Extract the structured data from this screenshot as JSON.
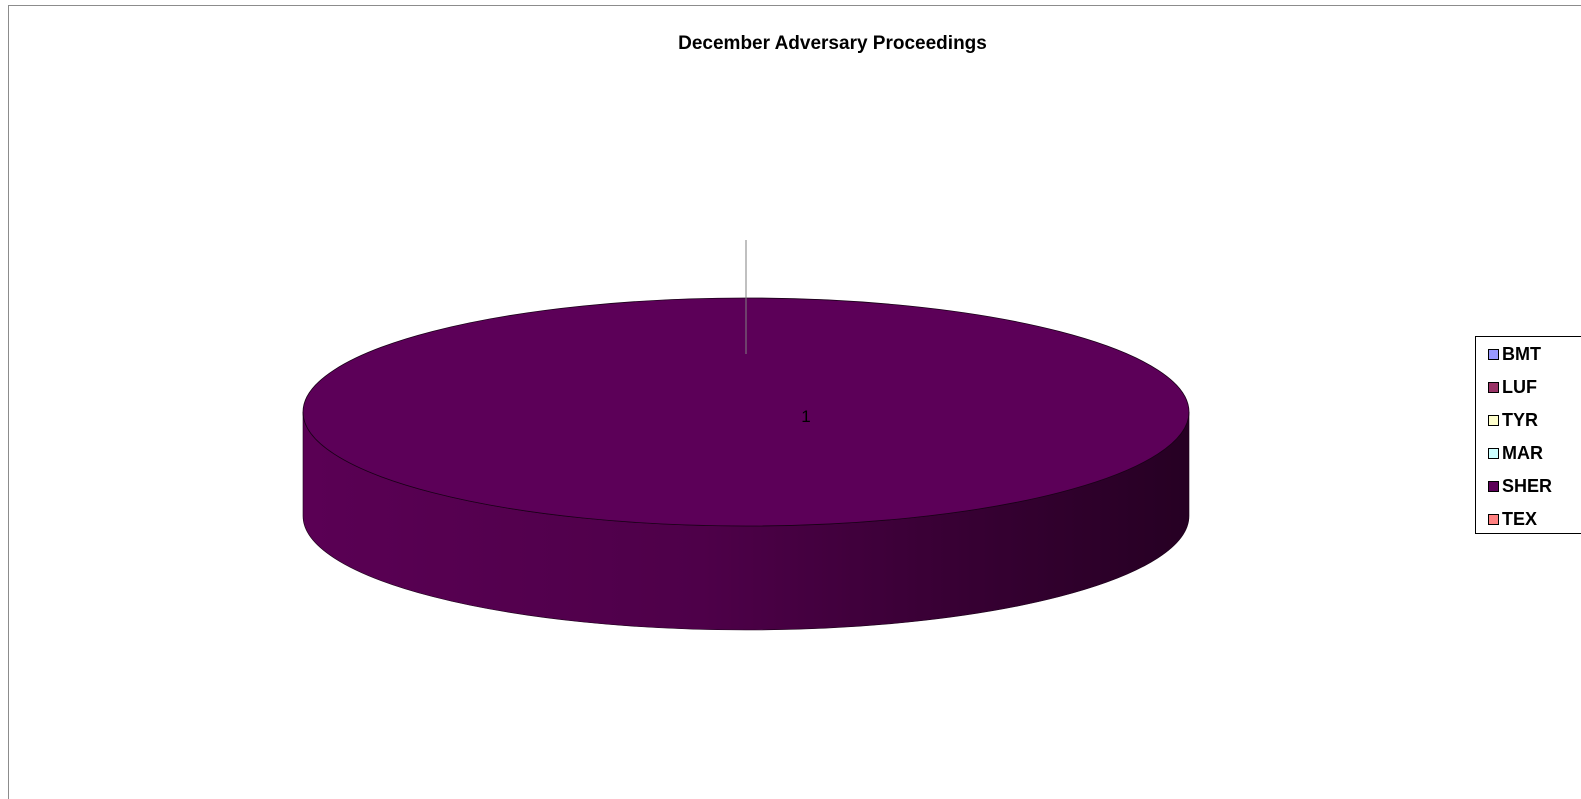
{
  "chart_data": {
    "type": "pie",
    "title": "December Adversary Proceedings",
    "categories": [
      "BMT",
      "LUF",
      "TYR",
      "MAR",
      "SHER",
      "TEX"
    ],
    "values": [
      0,
      0,
      0,
      0,
      1,
      0
    ],
    "data_labels": [
      "1"
    ],
    "colors": [
      "#9999ff",
      "#993366",
      "#ffffcc",
      "#ccffff",
      "#5c0058",
      "#ff8080"
    ],
    "legend_position": "right",
    "three_d": true
  }
}
